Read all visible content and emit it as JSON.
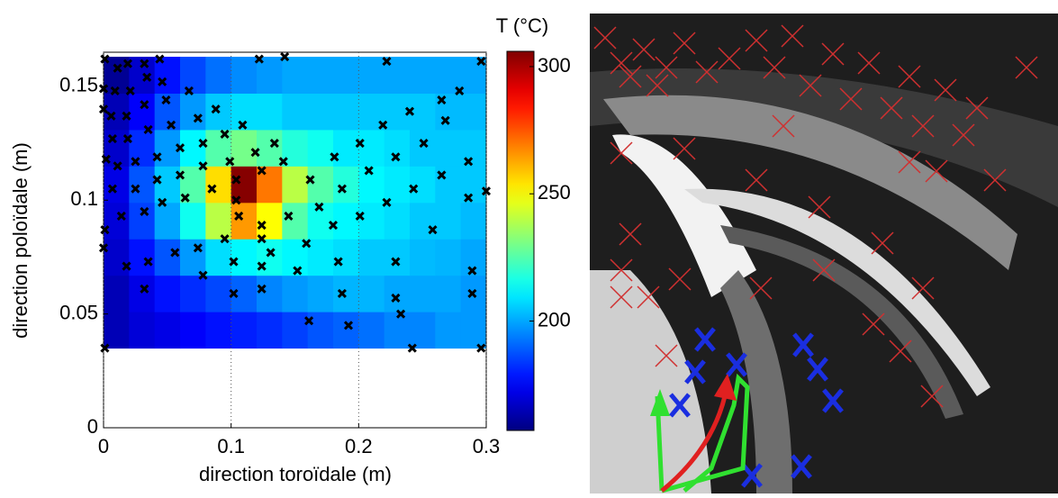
{
  "chart_data": {
    "type": "heatmap",
    "xlabel": "direction toroïdale (m)",
    "ylabel": "direction poloïdale (m)",
    "colorbar_label": "T (°C)",
    "colormap": "jet",
    "xlim": [
      0,
      0.3
    ],
    "ylim": [
      0,
      0.165
    ],
    "xticks": [
      0,
      0.1,
      0.2,
      0.3
    ],
    "yticks": [
      0,
      0.05,
      0.1,
      0.15
    ],
    "grid": "x",
    "clim": [
      157,
      306
    ],
    "cticks": [
      200,
      250,
      300
    ],
    "xbins": [
      0,
      0.02,
      0.04,
      0.06,
      0.08,
      0.1,
      0.12,
      0.14,
      0.16,
      0.18,
      0.2,
      0.22,
      0.24,
      0.26,
      0.28,
      0.3
    ],
    "ybins": [
      0.035,
      0.051,
      0.067,
      0.083,
      0.099,
      0.115,
      0.131,
      0.147,
      0.163
    ],
    "values": [
      [
        165,
        170,
        172,
        175,
        178,
        180,
        182,
        185,
        188,
        190,
        192,
        195,
        195,
        198,
        198
      ],
      [
        165,
        172,
        178,
        182,
        186,
        190,
        195,
        198,
        200,
        202,
        202,
        200,
        200,
        200,
        198
      ],
      [
        168,
        178,
        188,
        198,
        208,
        212,
        215,
        212,
        210,
        208,
        205,
        205,
        203,
        202,
        200
      ],
      [
        170,
        185,
        200,
        215,
        240,
        265,
        250,
        225,
        215,
        212,
        210,
        208,
        205,
        205,
        203
      ],
      [
        172,
        188,
        205,
        225,
        255,
        305,
        270,
        240,
        225,
        218,
        212,
        210,
        208,
        205,
        205
      ],
      [
        168,
        182,
        198,
        212,
        225,
        230,
        225,
        218,
        215,
        210,
        210,
        208,
        205,
        205,
        205
      ],
      [
        165,
        175,
        188,
        198,
        205,
        208,
        208,
        205,
        205,
        205,
        205,
        205,
        205,
        203,
        203
      ],
      [
        160,
        168,
        178,
        186,
        192,
        196,
        198,
        200,
        200,
        200,
        200,
        200,
        200,
        200,
        200
      ]
    ],
    "points": {
      "color": "#000000",
      "x": [
        0.001,
        0,
        0,
        0.002,
        0.001,
        0,
        0.001,
        0.011,
        0.019,
        0.032,
        0.044,
        0.009,
        0.021,
        0.034,
        0.046,
        0.006,
        0.018,
        0.032,
        0.049,
        0.067,
        0.007,
        0.019,
        0.035,
        0.053,
        0.074,
        0.088,
        0.011,
        0.025,
        0.042,
        0.06,
        0.078,
        0.095,
        0.109,
        0.007,
        0.025,
        0.042,
        0.06,
        0.078,
        0.099,
        0.119,
        0.134,
        0.014,
        0.032,
        0.046,
        0.064,
        0.085,
        0.104,
        0.124,
        0.141,
        0.162,
        0.181,
        0.201,
        0.219,
        0.24,
        0.265,
        0.279,
        0.018,
        0.035,
        0.056,
        0.074,
        0.095,
        0.124,
        0.145,
        0.169,
        0.187,
        0.208,
        0.229,
        0.251,
        0.268,
        0.032,
        0.078,
        0.102,
        0.131,
        0.159,
        0.18,
        0.201,
        0.222,
        0.243,
        0.265,
        0.286,
        0.102,
        0.124,
        0.152,
        0.184,
        0.229,
        0.258,
        0.286,
        0.3,
        0.124,
        0.187,
        0.229,
        0.289,
        0.289,
        0.161,
        0.192,
        0.233,
        0.242,
        0.296,
        0.296,
        0.222,
        0.122,
        0.142,
        0.104,
        0.106,
        0.124
      ],
      "y": [
        0.162,
        0.149,
        0.14,
        0.118,
        0.087,
        0.079,
        0.035,
        0.158,
        0.16,
        0.16,
        0.162,
        0.148,
        0.148,
        0.154,
        0.152,
        0.137,
        0.137,
        0.142,
        0.144,
        0.148,
        0.127,
        0.127,
        0.131,
        0.133,
        0.136,
        0.14,
        0.115,
        0.117,
        0.119,
        0.123,
        0.125,
        0.129,
        0.133,
        0.105,
        0.105,
        0.109,
        0.111,
        0.115,
        0.117,
        0.121,
        0.125,
        0.093,
        0.095,
        0.099,
        0.101,
        0.105,
        0.109,
        0.113,
        0.117,
        0.109,
        0.119,
        0.125,
        0.133,
        0.139,
        0.144,
        0.148,
        0.071,
        0.073,
        0.077,
        0.079,
        0.083,
        0.083,
        0.093,
        0.097,
        0.105,
        0.113,
        0.119,
        0.125,
        0.135,
        0.061,
        0.067,
        0.073,
        0.077,
        0.081,
        0.089,
        0.093,
        0.099,
        0.105,
        0.111,
        0.117,
        0.059,
        0.061,
        0.069,
        0.073,
        0.073,
        0.087,
        0.101,
        0.104,
        0.071,
        0.059,
        0.057,
        0.069,
        0.059,
        0.047,
        0.045,
        0.05,
        0.035,
        0.035,
        0.161,
        0.161,
        0.162,
        0.163,
        0.1,
        0.093,
        0.089
      ]
    }
  }
}
